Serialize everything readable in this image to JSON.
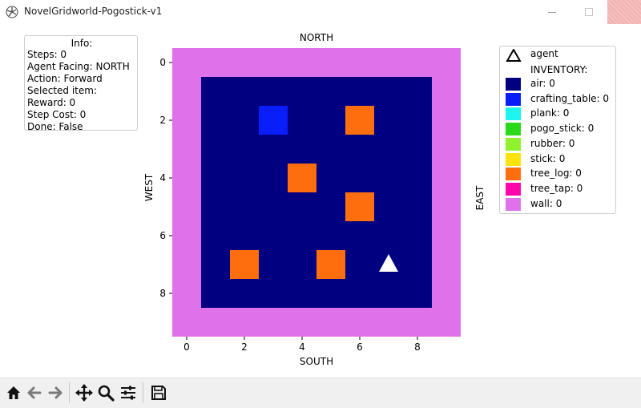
{
  "window": {
    "title": "NovelGridworld-Pogostick-v1",
    "close_color": "#f3b2b2"
  },
  "info": {
    "title": "Info:",
    "lines": [
      "Steps: 0",
      "Agent Facing: NORTH",
      "Action: Forward",
      "Selected item:",
      "Reward: 0",
      "Step Cost: 0",
      "Done: False"
    ]
  },
  "plot": {
    "top_label": "NORTH",
    "bottom_label": "SOUTH",
    "left_label": "WEST",
    "right_label": "EAST",
    "x_ticks": [
      "0",
      "2",
      "4",
      "6",
      "8"
    ],
    "y_ticks": [
      "0",
      "2",
      "4",
      "6",
      "8"
    ],
    "x_range": [
      -0.5,
      9.5
    ],
    "y_range": [
      -0.5,
      9.5
    ]
  },
  "grid": {
    "size": 10,
    "colors": {
      "wall": "#df72ea",
      "air": "#000080",
      "crafting_table": "#0a1ef9",
      "tree_log": "#fe6e0f",
      "agent": "#ffffff"
    },
    "cells": [
      {
        "item": "crafting_table",
        "row": 2,
        "col": 3
      },
      {
        "item": "tree_log",
        "row": 2,
        "col": 6
      },
      {
        "item": "tree_log",
        "row": 4,
        "col": 4
      },
      {
        "item": "tree_log",
        "row": 5,
        "col": 6
      },
      {
        "item": "tree_log",
        "row": 7,
        "col": 2
      },
      {
        "item": "tree_log",
        "row": 7,
        "col": 5
      }
    ],
    "agent": {
      "row": 7,
      "col": 7,
      "facing": "NORTH"
    }
  },
  "legend": {
    "agent_label": "agent",
    "inventory_title": "INVENTORY:",
    "items": [
      {
        "label": "air: 0",
        "color": "#000080"
      },
      {
        "label": "crafting_table: 0",
        "color": "#0a1ef9"
      },
      {
        "label": "plank: 0",
        "color": "#1df5f0"
      },
      {
        "label": "pogo_stick: 0",
        "color": "#2ad91a"
      },
      {
        "label": "rubber: 0",
        "color": "#8ff22c"
      },
      {
        "label": "stick: 0",
        "color": "#fde30b"
      },
      {
        "label": "tree_log: 0",
        "color": "#fe6e0f"
      },
      {
        "label": "tree_tap: 0",
        "color": "#fd07ab"
      },
      {
        "label": "wall: 0",
        "color": "#df72ea"
      }
    ]
  },
  "toolbar": {
    "buttons": [
      "home-icon",
      "back-arrow-icon",
      "forward-arrow-icon",
      "pan-icon",
      "zoom-icon",
      "configure-subplots-icon",
      "save-icon"
    ]
  }
}
